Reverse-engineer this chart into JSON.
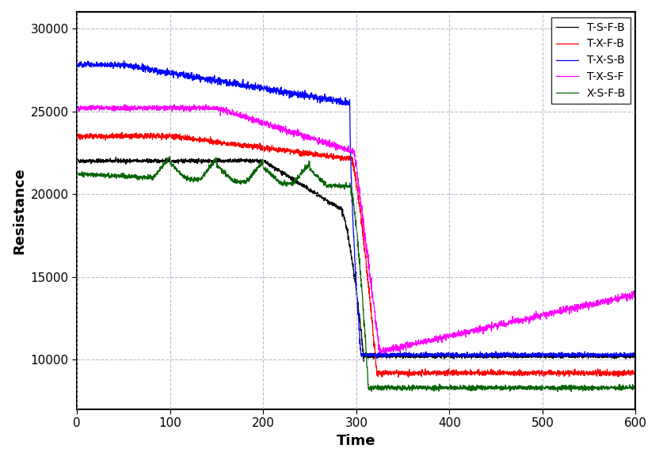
{
  "title": "",
  "xlabel": "Time",
  "ylabel": "Resistance",
  "xlim": [
    0,
    600
  ],
  "ylim": [
    7000,
    31000
  ],
  "yticks": [
    10000,
    15000,
    20000,
    25000,
    30000
  ],
  "xticks": [
    0,
    100,
    200,
    300,
    400,
    500,
    600
  ],
  "background_color": "#ffffff",
  "series": [
    {
      "label": "T-S-F-B",
      "color": "#000000",
      "type": "black"
    },
    {
      "label": "T-X-F-B",
      "color": "#ff0000",
      "type": "red"
    },
    {
      "label": "T-X-S-B",
      "color": "#0000ff",
      "type": "blue"
    },
    {
      "label": "T-X-S-F",
      "color": "#ff00ff",
      "type": "magenta"
    },
    {
      "label": "X-S-F-B",
      "color": "#006400",
      "type": "green"
    }
  ],
  "figsize": [
    8.32,
    5.81
  ],
  "dpi": 100
}
